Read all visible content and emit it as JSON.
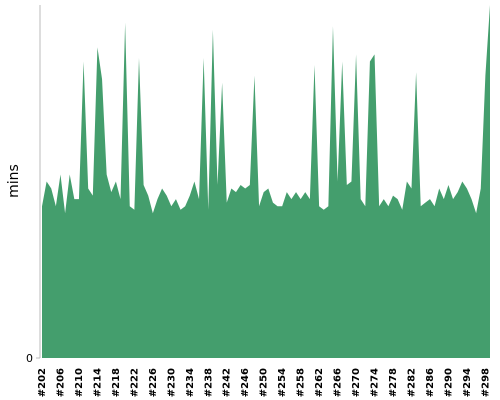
{
  "chart_data": {
    "type": "area",
    "y_label": "mins",
    "color": "#449e6d",
    "categories": [
      "#202",
      null,
      null,
      null,
      "#206",
      null,
      null,
      null,
      "#210",
      null,
      null,
      null,
      "#214",
      null,
      null,
      null,
      "#218",
      null,
      null,
      null,
      "#222",
      null,
      null,
      null,
      "#226",
      null,
      null,
      null,
      "#230",
      null,
      null,
      null,
      "#234",
      null,
      null,
      null,
      "#238",
      null,
      null,
      null,
      "#242",
      null,
      null,
      null,
      "#246",
      null,
      null,
      null,
      "#250",
      null,
      null,
      null,
      "#254",
      null,
      null,
      null,
      "#258",
      null,
      null,
      null,
      "#262",
      null,
      null,
      null,
      "#266",
      null,
      null,
      null,
      "#270",
      null,
      null,
      null,
      "#274",
      null,
      null,
      null,
      "#278",
      null,
      null,
      null,
      "#282",
      null,
      null,
      null,
      "#286",
      null,
      null,
      null,
      "#290",
      null,
      null,
      null,
      "#294",
      null,
      null,
      null,
      "#298",
      null
    ],
    "values": [
      43,
      50,
      48,
      43,
      52,
      41,
      52,
      45,
      45,
      84,
      48,
      46,
      88,
      79,
      52,
      47,
      50,
      45,
      95,
      43,
      42,
      85,
      49,
      46,
      41,
      45,
      48,
      46,
      43,
      45,
      42,
      43,
      46,
      50,
      45,
      85,
      42,
      93,
      49,
      78,
      44,
      48,
      47,
      49,
      48,
      49,
      80,
      43,
      47,
      48,
      44,
      43,
      43,
      47,
      45,
      47,
      45,
      47,
      45,
      83,
      43,
      42,
      43,
      94,
      50,
      84,
      49,
      50,
      86,
      45,
      43,
      84,
      86,
      43,
      45,
      43,
      46,
      45,
      42,
      50,
      48,
      81,
      43,
      44,
      45,
      43,
      48,
      45,
      49,
      45,
      47,
      50,
      48,
      45,
      41,
      48,
      80,
      100
    ],
    "ylim": [
      0,
      100
    ],
    "yticks": [
      0
    ]
  }
}
